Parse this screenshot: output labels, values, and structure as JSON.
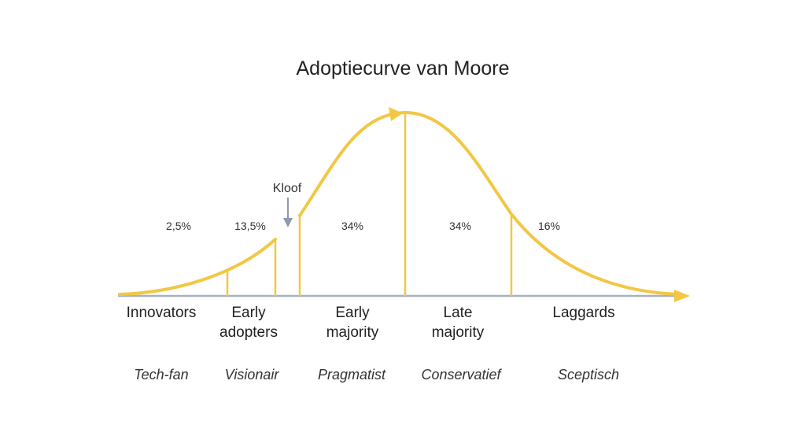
{
  "title": "Adoptiecurve van Moore",
  "chasm_label": "Kloof",
  "colors": {
    "curve": "#F2C744",
    "axis": "#A7B1BD",
    "chasm_arrow": "#8F9AAA",
    "text": "#222222"
  },
  "segments": [
    {
      "pct": "2,5%",
      "name_lines": [
        "Innovators"
      ],
      "persona": "Tech-fan"
    },
    {
      "pct": "13,5%",
      "name_lines": [
        "Early",
        "adopters"
      ],
      "persona": "Visionair"
    },
    {
      "pct": "34%",
      "name_lines": [
        "Early",
        "majority"
      ],
      "persona": "Pragmatist"
    },
    {
      "pct": "34%",
      "name_lines": [
        "Late",
        "majority"
      ],
      "persona": "Conservatief"
    },
    {
      "pct": "16%",
      "name_lines": [
        "Laggards"
      ],
      "persona": "Sceptisch"
    }
  ]
}
